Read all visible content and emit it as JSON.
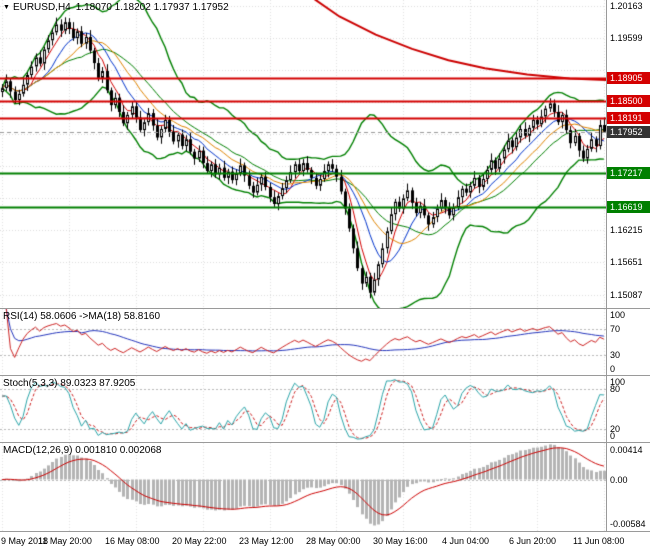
{
  "header": {
    "marker": "▼",
    "symbol": "EURUSD,H4",
    "ohlc": "1.18070 1.18202 1.17937 1.17952"
  },
  "colors": {
    "background": "#ffffff",
    "grid": "#dcdcdc",
    "separator": "#9a9a9a",
    "candle_outline": "#000000",
    "bull_fill": "#ffffff",
    "bear_fill": "#000000",
    "bollinger": "#008000",
    "ma_fast": "#d40000",
    "ma_mid": "#0033cc",
    "ma_slow": "#e08400",
    "trend_ma": "#cc0000",
    "resistance": "#d40000",
    "support": "#008000",
    "current_label_bg": "#333333",
    "current_line": "#999999",
    "rsi_line": "#cc2222",
    "rsi_ma_line": "#2233bb",
    "stoch_k": "#2aa4a8",
    "stoch_d": "#cc2222",
    "macd_hist": "#b4b4b4",
    "macd_signal": "#cc0000",
    "level_dotted": "#b8b8b8"
  },
  "main_chart": {
    "grid_prices": [
      1.20163,
      1.19599,
      1.19035,
      1.18471,
      1.17907,
      1.17343,
      1.16779,
      1.16215,
      1.15651,
      1.15087
    ],
    "y_axis_labels": [
      {
        "text": "1.20163",
        "price": 1.20163,
        "style": "plain"
      },
      {
        "text": "1.19599",
        "price": 1.19599,
        "style": "plain"
      },
      {
        "text": "1.18905",
        "price": 1.18905,
        "style": "resistance"
      },
      {
        "text": "1.18500",
        "price": 1.185,
        "style": "resistance"
      },
      {
        "text": "1.18191",
        "price": 1.18191,
        "style": "resistance"
      },
      {
        "text": "1.17952",
        "price": 1.17952,
        "style": "current"
      },
      {
        "text": "1.17217",
        "price": 1.17217,
        "style": "support"
      },
      {
        "text": "1.16619",
        "price": 1.16619,
        "style": "support"
      },
      {
        "text": "1.16215",
        "price": 1.16215,
        "style": "plain"
      },
      {
        "text": "1.15651",
        "price": 1.15651,
        "style": "plain"
      },
      {
        "text": "1.15087",
        "price": 1.15087,
        "style": "plain"
      }
    ]
  },
  "chart_data": [
    {
      "type": "candlestick",
      "symbol": "EURUSD",
      "timeframe": "H4",
      "last_ohlc": {
        "open": 1.1807,
        "high": 1.18202,
        "low": 1.17937,
        "close": 1.17952
      },
      "price_range": [
        1.1485,
        1.2027
      ],
      "x_labels": [
        "9 May 2018",
        "11 May 20:00",
        "16 May 08:00",
        "20 May 22:00",
        "23 May 12:00",
        "28 May 00:00",
        "30 May 16:00",
        "4 Jun 04:00",
        "6 Jun 20:00",
        "11 Jun 08:00"
      ],
      "x_label_step": 16,
      "horizontal_levels": {
        "resistance": [
          1.18905,
          1.185,
          1.18191
        ],
        "support": [
          1.17217,
          1.16619
        ],
        "current": 1.17952
      },
      "overlays": {
        "bollinger_period": 20,
        "bollinger_dev": 2,
        "ma_periods": [
          5,
          10,
          15
        ],
        "trend_ma_path": [
          [
            0.51,
            1.2035
          ],
          [
            0.56,
            1.1998
          ],
          [
            0.62,
            1.1966
          ],
          [
            0.68,
            1.1941
          ],
          [
            0.74,
            1.1921
          ],
          [
            0.8,
            1.1907
          ],
          [
            0.87,
            1.1896
          ],
          [
            0.94,
            1.1889
          ],
          [
            1.0,
            1.1886
          ]
        ]
      },
      "candles": [
        [
          1.1865,
          1.1879,
          1.1856,
          1.1872
        ],
        [
          1.1872,
          1.1896,
          1.1867,
          1.1884
        ],
        [
          1.1884,
          1.1889,
          1.1855,
          1.1866
        ],
        [
          1.1866,
          1.1875,
          1.1845,
          1.1851
        ],
        [
          1.1851,
          1.1869,
          1.1842,
          1.1862
        ],
        [
          1.1862,
          1.189,
          1.1857,
          1.1878
        ],
        [
          1.1878,
          1.19,
          1.1867,
          1.1895
        ],
        [
          1.1895,
          1.1919,
          1.1889,
          1.191
        ],
        [
          1.191,
          1.1933,
          1.1901,
          1.1926
        ],
        [
          1.1926,
          1.1938,
          1.191,
          1.1915
        ],
        [
          1.1915,
          1.1945,
          1.1904,
          1.194
        ],
        [
          1.194,
          1.1965,
          1.1934,
          1.1956
        ],
        [
          1.1956,
          1.1977,
          1.1947,
          1.197
        ],
        [
          1.197,
          1.1996,
          1.1965,
          1.1984
        ],
        [
          1.1984,
          1.1993,
          1.1962,
          1.1973
        ],
        [
          1.1973,
          1.19965,
          1.1967,
          1.1988
        ],
        [
          1.1988,
          1.1995,
          1.1967,
          1.1976
        ],
        [
          1.1976,
          1.1988,
          1.1955,
          1.196
        ],
        [
          1.196,
          1.1977,
          1.1949,
          1.1972
        ],
        [
          1.1972,
          1.1981,
          1.1944,
          1.195
        ],
        [
          1.195,
          1.1969,
          1.1941,
          1.1962
        ],
        [
          1.1962,
          1.1974,
          1.1933,
          1.1938
        ],
        [
          1.1938,
          1.1943,
          1.1905,
          1.1916
        ],
        [
          1.1916,
          1.1925,
          1.1884,
          1.189
        ],
        [
          1.189,
          1.1909,
          1.1881,
          1.1902
        ],
        [
          1.1902,
          1.1914,
          1.1863,
          1.1868
        ],
        [
          1.1868,
          1.1873,
          1.1831,
          1.1842
        ],
        [
          1.1842,
          1.1864,
          1.1836,
          1.1855
        ],
        [
          1.1855,
          1.1862,
          1.1821,
          1.183
        ],
        [
          1.183,
          1.1842,
          1.1805,
          1.181
        ],
        [
          1.181,
          1.183,
          1.1799,
          1.1825
        ],
        [
          1.1825,
          1.1849,
          1.1819,
          1.184
        ],
        [
          1.184,
          1.1847,
          1.1811,
          1.182
        ],
        [
          1.182,
          1.1832,
          1.1793,
          1.1798
        ],
        [
          1.1798,
          1.1817,
          1.1787,
          1.1812
        ],
        [
          1.1812,
          1.1837,
          1.1806,
          1.1828
        ],
        [
          1.1828,
          1.1835,
          1.1797,
          1.1806
        ],
        [
          1.1806,
          1.1818,
          1.178,
          1.1785
        ],
        [
          1.1785,
          1.1805,
          1.1774,
          1.18
        ],
        [
          1.18,
          1.1825,
          1.1794,
          1.1816
        ],
        [
          1.1816,
          1.1823,
          1.1786,
          1.1795
        ],
        [
          1.1795,
          1.1807,
          1.1773,
          1.1778
        ],
        [
          1.1778,
          1.1795,
          1.1767,
          1.179
        ],
        [
          1.179,
          1.1799,
          1.1764,
          1.177
        ],
        [
          1.177,
          1.1789,
          1.1761,
          1.1782
        ],
        [
          1.1782,
          1.1794,
          1.1755,
          1.176
        ],
        [
          1.176,
          1.1765,
          1.1737,
          1.1748
        ],
        [
          1.1748,
          1.1771,
          1.1742,
          1.1762
        ],
        [
          1.1762,
          1.1769,
          1.1731,
          1.174
        ],
        [
          1.174,
          1.1752,
          1.1721,
          1.1726
        ],
        [
          1.1726,
          1.1743,
          1.1715,
          1.1738
        ],
        [
          1.1738,
          1.1747,
          1.1714,
          1.172
        ],
        [
          1.172,
          1.1739,
          1.1711,
          1.1732
        ],
        [
          1.1732,
          1.1744,
          1.1709,
          1.1714
        ],
        [
          1.1714,
          1.173,
          1.1703,
          1.1725
        ],
        [
          1.1725,
          1.1734,
          1.1704,
          1.171
        ],
        [
          1.171,
          1.1729,
          1.1701,
          1.1722
        ],
        [
          1.1722,
          1.1748,
          1.1717,
          1.1736
        ],
        [
          1.1736,
          1.1741,
          1.1707,
          1.1718
        ],
        [
          1.1718,
          1.1727,
          1.1694,
          1.17
        ],
        [
          1.17,
          1.1707,
          1.1679,
          1.1688
        ],
        [
          1.1688,
          1.1714,
          1.1683,
          1.1702
        ],
        [
          1.1702,
          1.1721,
          1.1691,
          1.1716
        ],
        [
          1.1716,
          1.1725,
          1.1692,
          1.1698
        ],
        [
          1.1698,
          1.1705,
          1.1671,
          1.168
        ],
        [
          1.168,
          1.1692,
          1.1663,
          1.1668
        ],
        [
          1.1668,
          1.1687,
          1.1657,
          1.1682
        ],
        [
          1.1682,
          1.1705,
          1.1676,
          1.1696
        ],
        [
          1.1696,
          1.1717,
          1.1687,
          1.171
        ],
        [
          1.171,
          1.1736,
          1.1705,
          1.1724
        ],
        [
          1.1724,
          1.1743,
          1.1713,
          1.1738
        ],
        [
          1.1738,
          1.1747,
          1.172,
          1.1726
        ],
        [
          1.1726,
          1.1747,
          1.1717,
          1.174
        ],
        [
          1.174,
          1.1752,
          1.1723,
          1.1728
        ],
        [
          1.1728,
          1.1733,
          1.1703,
          1.1714
        ],
        [
          1.1714,
          1.1723,
          1.1694,
          1.17
        ],
        [
          1.17,
          1.1719,
          1.1691,
          1.1712
        ],
        [
          1.1712,
          1.1738,
          1.1707,
          1.1726
        ],
        [
          1.1726,
          1.1743,
          1.1715,
          1.1738
        ],
        [
          1.1738,
          1.1747,
          1.1724,
          1.173
        ],
        [
          1.173,
          1.1737,
          1.1707,
          1.1716
        ],
        [
          1.1716,
          1.1728,
          1.1685,
          1.169
        ],
        [
          1.169,
          1.1695,
          1.1649,
          1.166
        ],
        [
          1.166,
          1.1669,
          1.1619,
          1.1625
        ],
        [
          1.1625,
          1.1632,
          1.1581,
          1.159
        ],
        [
          1.159,
          1.1602,
          1.155,
          1.1555
        ],
        [
          1.1555,
          1.156,
          1.1517,
          1.1528
        ],
        [
          1.1528,
          1.1549,
          1.1522,
          1.154
        ],
        [
          1.154,
          1.1547,
          1.1502,
          1.1512
        ],
        [
          1.1512,
          1.1547,
          1.1507,
          1.1535
        ],
        [
          1.1535,
          1.1567,
          1.1524,
          1.1562
        ],
        [
          1.1562,
          1.1599,
          1.1556,
          1.159
        ],
        [
          1.159,
          1.1627,
          1.1581,
          1.162
        ],
        [
          1.162,
          1.1662,
          1.1615,
          1.165
        ],
        [
          1.165,
          1.1677,
          1.1639,
          1.1672
        ],
        [
          1.1672,
          1.1681,
          1.1654,
          1.166
        ],
        [
          1.166,
          1.1685,
          1.1651,
          1.1678
        ],
        [
          1.1678,
          1.1704,
          1.1673,
          1.1692
        ],
        [
          1.1692,
          1.1697,
          1.1659,
          1.167
        ],
        [
          1.167,
          1.1679,
          1.1646,
          1.1652
        ],
        [
          1.1652,
          1.1672,
          1.1643,
          1.1665
        ],
        [
          1.1665,
          1.1677,
          1.1643,
          1.1648
        ],
        [
          1.1648,
          1.1653,
          1.1621,
          1.1632
        ],
        [
          1.1632,
          1.1654,
          1.1626,
          1.1645
        ],
        [
          1.1645,
          1.1667,
          1.1636,
          1.166
        ],
        [
          1.166,
          1.1687,
          1.1655,
          1.1675
        ],
        [
          1.1675,
          1.168,
          1.1651,
          1.1662
        ],
        [
          1.1662,
          1.1671,
          1.1642,
          1.1648
        ],
        [
          1.1648,
          1.1669,
          1.1639,
          1.1662
        ],
        [
          1.1662,
          1.1692,
          1.1657,
          1.168
        ],
        [
          1.168,
          1.17,
          1.1669,
          1.1695
        ],
        [
          1.1695,
          1.1704,
          1.1682,
          1.1688
        ],
        [
          1.1688,
          1.1707,
          1.1679,
          1.17
        ],
        [
          1.17,
          1.1726,
          1.1695,
          1.1714
        ],
        [
          1.1714,
          1.1719,
          1.1687,
          1.1698
        ],
        [
          1.1698,
          1.1721,
          1.1692,
          1.1712
        ],
        [
          1.1712,
          1.1735,
          1.1703,
          1.1728
        ],
        [
          1.1728,
          1.1757,
          1.1723,
          1.1745
        ],
        [
          1.1745,
          1.175,
          1.1719,
          1.173
        ],
        [
          1.173,
          1.1757,
          1.1724,
          1.1748
        ],
        [
          1.1748,
          1.1771,
          1.1739,
          1.1764
        ],
        [
          1.1764,
          1.1792,
          1.1759,
          1.178
        ],
        [
          1.178,
          1.1785,
          1.1757,
          1.1768
        ],
        [
          1.1768,
          1.1794,
          1.1762,
          1.1785
        ],
        [
          1.1785,
          1.1807,
          1.1776,
          1.18
        ],
        [
          1.18,
          1.1812,
          1.1783,
          1.1788
        ],
        [
          1.1788,
          1.1807,
          1.1777,
          1.1802
        ],
        [
          1.1802,
          1.1825,
          1.1796,
          1.1816
        ],
        [
          1.1816,
          1.1823,
          1.1799,
          1.1808
        ],
        [
          1.1808,
          1.1834,
          1.1803,
          1.1822
        ],
        [
          1.1822,
          1.1841,
          1.1811,
          1.1836
        ],
        [
          1.1836,
          1.1854,
          1.183,
          1.1845
        ],
        [
          1.1845,
          1.1852,
          1.1821,
          1.183
        ],
        [
          1.183,
          1.1842,
          1.1807,
          1.1812
        ],
        [
          1.1812,
          1.183,
          1.1801,
          1.1825
        ],
        [
          1.1825,
          1.1834,
          1.1792,
          1.1798
        ],
        [
          1.1798,
          1.1805,
          1.1766,
          1.1775
        ],
        [
          1.1775,
          1.18,
          1.177,
          1.1788
        ],
        [
          1.1788,
          1.1793,
          1.1751,
          1.1762
        ],
        [
          1.1762,
          1.1771,
          1.1742,
          1.1748
        ],
        [
          1.1748,
          1.1772,
          1.1739,
          1.1765
        ],
        [
          1.1765,
          1.1794,
          1.176,
          1.1782
        ],
        [
          1.1782,
          1.1787,
          1.1759,
          1.177
        ],
        [
          1.177,
          1.1816,
          1.1764,
          1.1807
        ],
        [
          1.1807,
          1.18202,
          1.17937,
          1.17952
        ]
      ]
    },
    {
      "type": "line",
      "name": "RSI",
      "title": "RSI(14) 58.0606 ->MA(18) 58.8160",
      "params": {
        "period": 14,
        "ma_period": 18
      },
      "range": [
        0,
        100
      ],
      "levels": [
        100,
        70,
        30,
        0
      ],
      "dotted_levels": [
        70,
        30
      ],
      "last_values": [
        58.0606,
        58.816
      ]
    },
    {
      "type": "line",
      "name": "Stochastic",
      "title": "Stoch(5,3,3) 89.0323 87.9205",
      "params": {
        "k": 5,
        "slowing": 3,
        "d": 3
      },
      "range": [
        0,
        100
      ],
      "levels": [
        100,
        80,
        20,
        0
      ],
      "dotted_levels": [
        80,
        20
      ],
      "last_values": [
        89.0323,
        87.9205
      ]
    },
    {
      "type": "macd",
      "name": "MACD",
      "title": "MACD(12,26,9) 0.001810 0.002068",
      "params": {
        "fast": 12,
        "slow": 26,
        "signal": 9
      },
      "range": [
        -0.00584,
        0.00414
      ],
      "axis_labels": [
        {
          "text": "0.00414",
          "value": 0.00414
        },
        {
          "text": "0.00",
          "value": 0.0
        },
        {
          "text": "-0.00584",
          "value": -0.00584
        }
      ],
      "last_values": [
        0.00181,
        0.002068
      ]
    }
  ]
}
